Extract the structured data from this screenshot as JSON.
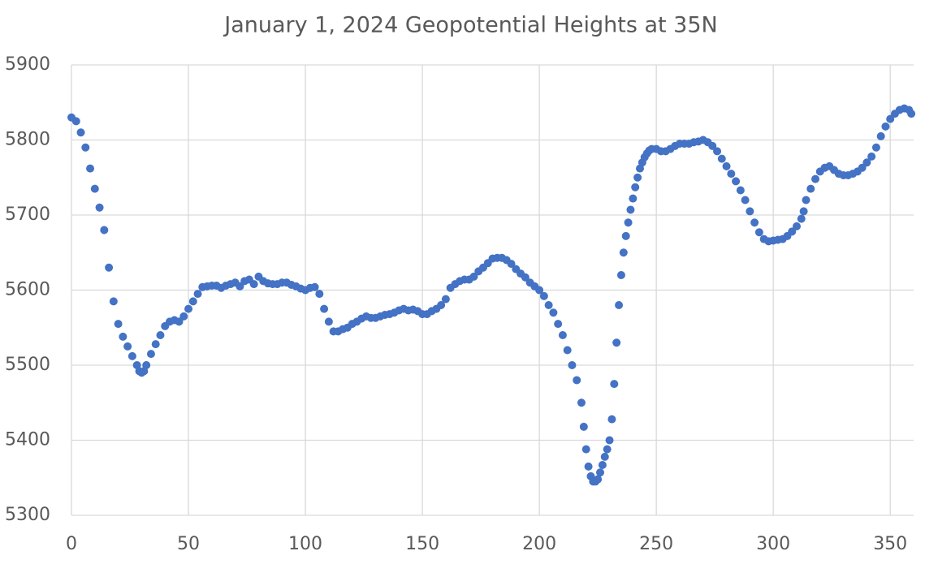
{
  "chart_data": {
    "type": "scatter",
    "title": "January 1, 2024 Geopotential Heights at 35N",
    "x": [
      0,
      2,
      4,
      6,
      8,
      10,
      12,
      14,
      16,
      18,
      20,
      22,
      24,
      26,
      28,
      29,
      30,
      31,
      32,
      34,
      36,
      38,
      40,
      42,
      44,
      46,
      48,
      50,
      52,
      54,
      56,
      58,
      60,
      62,
      64,
      66,
      68,
      70,
      72,
      74,
      76,
      78,
      80,
      82,
      84,
      86,
      88,
      90,
      92,
      94,
      96,
      98,
      100,
      102,
      104,
      106,
      108,
      110,
      112,
      114,
      116,
      118,
      120,
      122,
      124,
      126,
      128,
      130,
      132,
      134,
      136,
      138,
      140,
      142,
      144,
      146,
      148,
      150,
      152,
      154,
      156,
      158,
      160,
      162,
      164,
      166,
      168,
      170,
      172,
      174,
      176,
      178,
      180,
      182,
      184,
      186,
      188,
      190,
      192,
      194,
      196,
      198,
      200,
      202,
      204,
      206,
      208,
      210,
      212,
      214,
      216,
      218,
      219,
      220,
      221,
      222,
      223,
      224,
      225,
      226,
      227,
      228,
      229,
      230,
      231,
      232,
      233,
      234,
      235,
      236,
      237,
      238,
      239,
      240,
      241,
      242,
      243,
      244,
      245,
      246,
      247,
      248,
      250,
      252,
      254,
      256,
      258,
      260,
      262,
      264,
      266,
      268,
      270,
      272,
      274,
      276,
      278,
      280,
      282,
      284,
      286,
      288,
      290,
      292,
      294,
      296,
      298,
      300,
      302,
      304,
      306,
      308,
      310,
      312,
      313,
      314,
      316,
      318,
      320,
      322,
      324,
      326,
      328,
      330,
      332,
      334,
      336,
      338,
      340,
      342,
      344,
      346,
      348,
      350,
      352,
      354,
      356,
      358,
      359
    ],
    "values": [
      5830,
      5825,
      5810,
      5790,
      5762,
      5735,
      5710,
      5680,
      5630,
      5585,
      5555,
      5538,
      5525,
      5512,
      5500,
      5492,
      5490,
      5492,
      5500,
      5515,
      5528,
      5540,
      5552,
      5558,
      5560,
      5558,
      5565,
      5575,
      5585,
      5595,
      5604,
      5605,
      5606,
      5606,
      5603,
      5606,
      5608,
      5610,
      5605,
      5612,
      5614,
      5608,
      5618,
      5612,
      5609,
      5608,
      5608,
      5610,
      5610,
      5607,
      5605,
      5602,
      5600,
      5603,
      5604,
      5595,
      5575,
      5558,
      5545,
      5545,
      5548,
      5550,
      5555,
      5558,
      5562,
      5565,
      5563,
      5563,
      5565,
      5567,
      5568,
      5570,
      5573,
      5575,
      5573,
      5574,
      5572,
      5568,
      5568,
      5572,
      5575,
      5580,
      5588,
      5603,
      5608,
      5612,
      5614,
      5614,
      5618,
      5625,
      5630,
      5636,
      5642,
      5643,
      5643,
      5640,
      5635,
      5628,
      5622,
      5617,
      5610,
      5605,
      5600,
      5592,
      5580,
      5570,
      5555,
      5540,
      5520,
      5500,
      5480,
      5450,
      5418,
      5388,
      5365,
      5352,
      5345,
      5345,
      5348,
      5357,
      5367,
      5378,
      5388,
      5400,
      5428,
      5475,
      5530,
      5580,
      5620,
      5650,
      5672,
      5690,
      5707,
      5722,
      5737,
      5750,
      5762,
      5770,
      5777,
      5782,
      5786,
      5788,
      5788,
      5785,
      5785,
      5788,
      5792,
      5795,
      5795,
      5795,
      5797,
      5798,
      5800,
      5797,
      5792,
      5785,
      5775,
      5765,
      5755,
      5745,
      5733,
      5720,
      5705,
      5690,
      5677,
      5668,
      5665,
      5666,
      5667,
      5668,
      5672,
      5678,
      5685,
      5695,
      5705,
      5720,
      5735,
      5748,
      5758,
      5763,
      5765,
      5760,
      5755,
      5753,
      5753,
      5755,
      5758,
      5763,
      5770,
      5778,
      5790,
      5805,
      5818,
      5828,
      5835,
      5840,
      5842,
      5840,
      5835
    ],
    "color": "#4472c4",
    "xlim": [
      0,
      360
    ],
    "xticks": [
      0,
      50,
      100,
      150,
      200,
      250,
      300,
      350
    ],
    "ylim": [
      5300,
      5900
    ],
    "yticks": [
      5300,
      5400,
      5500,
      5600,
      5700,
      5800,
      5900
    ],
    "grid": true
  }
}
